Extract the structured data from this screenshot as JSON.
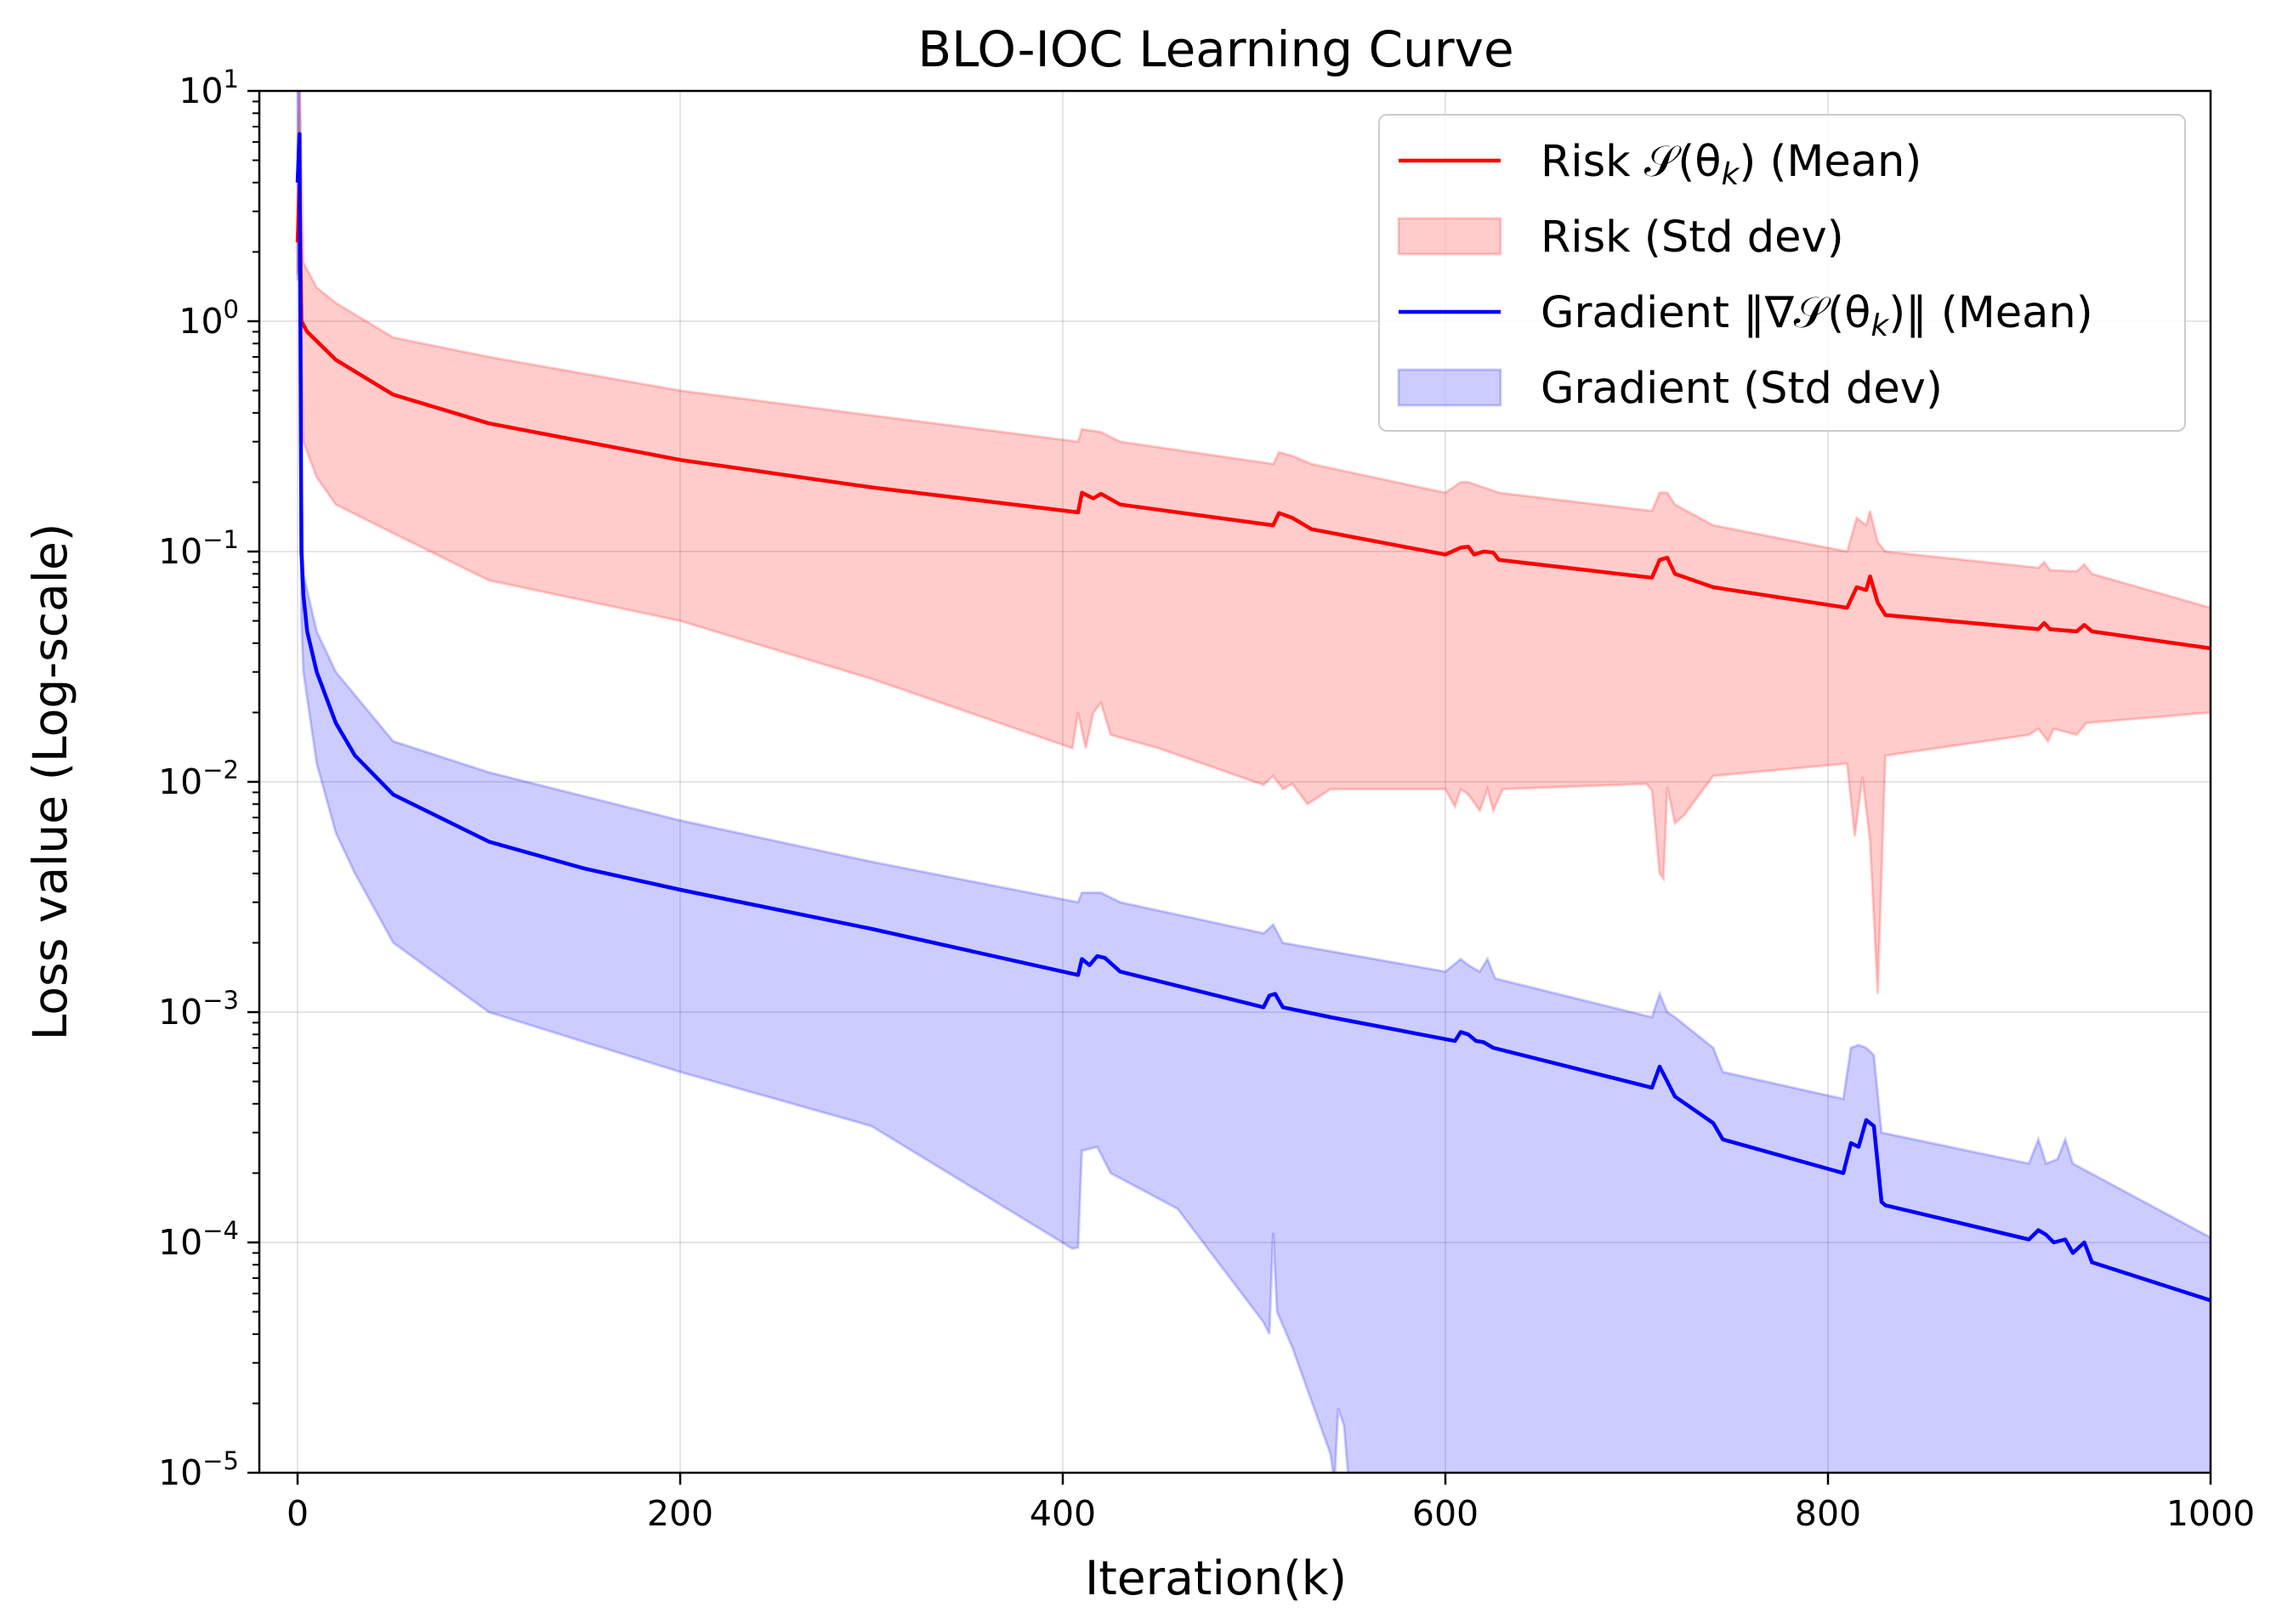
{
  "chart_data": {
    "type": "line",
    "title": "BLO-IOC Learning Curve",
    "xlabel": "Iteration(k)",
    "ylabel": "Loss value (Log-scale)",
    "xlim": [
      -20,
      1000
    ],
    "ylim": [
      1e-05,
      10
    ],
    "yscale": "log",
    "grid": true,
    "legend_position": "upper-right",
    "x_ticks": [
      0,
      200,
      400,
      600,
      800,
      1000
    ],
    "x_tick_labels": [
      "0",
      "200",
      "400",
      "600",
      "800",
      "1000"
    ],
    "y_ticks": [
      1e-05,
      0.0001,
      0.001,
      0.01,
      0.1,
      1,
      10
    ],
    "y_tick_labels": [
      {
        "base": "10",
        "exp": "−5"
      },
      {
        "base": "10",
        "exp": "−4"
      },
      {
        "base": "10",
        "exp": "−3"
      },
      {
        "base": "10",
        "exp": "−2"
      },
      {
        "base": "10",
        "exp": "−1"
      },
      {
        "base": "10",
        "exp": "0"
      },
      {
        "base": "10",
        "exp": "1"
      }
    ],
    "legend": [
      {
        "label": "Risk 𝒮(θ",
        "sub": "k",
        "tail": ") (Mean)",
        "kind": "line",
        "color": "#ff0000"
      },
      {
        "label": "Risk (Std dev)",
        "kind": "patch",
        "color": "#ff0000"
      },
      {
        "label": "Gradient ‖∇𝒮(θ",
        "sub": "k",
        "tail": ")‖ (Mean)",
        "kind": "line",
        "color": "#0000ff"
      },
      {
        "label": "Gradient (Std dev)",
        "kind": "patch",
        "color": "#0000ff"
      }
    ],
    "series": [
      {
        "name": "Risk 𝒮(θk) (Mean)",
        "color": "#ff0000",
        "role": "mean",
        "points": [
          [
            0,
            2.2
          ],
          [
            1,
            3.8
          ],
          [
            2,
            1.0
          ],
          [
            5,
            0.9
          ],
          [
            20,
            0.68
          ],
          [
            50,
            0.48
          ],
          [
            100,
            0.36
          ],
          [
            200,
            0.25
          ],
          [
            300,
            0.19
          ],
          [
            408,
            0.148
          ],
          [
            410,
            0.18
          ],
          [
            416,
            0.17
          ],
          [
            420,
            0.178
          ],
          [
            430,
            0.16
          ],
          [
            510,
            0.13
          ],
          [
            513,
            0.147
          ],
          [
            520,
            0.14
          ],
          [
            530,
            0.125
          ],
          [
            600,
            0.097
          ],
          [
            608,
            0.104
          ],
          [
            612,
            0.105
          ],
          [
            615,
            0.097
          ],
          [
            620,
            0.1
          ],
          [
            625,
            0.099
          ],
          [
            628,
            0.092
          ],
          [
            708,
            0.077
          ],
          [
            712,
            0.092
          ],
          [
            716,
            0.094
          ],
          [
            720,
            0.08
          ],
          [
            740,
            0.07
          ],
          [
            810,
            0.057
          ],
          [
            815,
            0.07
          ],
          [
            820,
            0.068
          ],
          [
            822,
            0.078
          ],
          [
            826,
            0.06
          ],
          [
            830,
            0.053
          ],
          [
            910,
            0.046
          ],
          [
            913,
            0.049
          ],
          [
            916,
            0.046
          ],
          [
            930,
            0.045
          ],
          [
            934,
            0.048
          ],
          [
            938,
            0.045
          ],
          [
            1000,
            0.038
          ]
        ]
      },
      {
        "name": "Risk (Std dev)",
        "color": "#ff0000",
        "role": "band",
        "upper": [
          [
            0,
            3.0
          ],
          [
            1,
            12.0
          ],
          [
            3,
            1.8
          ],
          [
            10,
            1.4
          ],
          [
            20,
            1.2
          ],
          [
            50,
            0.85
          ],
          [
            100,
            0.7
          ],
          [
            200,
            0.5
          ],
          [
            300,
            0.39
          ],
          [
            408,
            0.3
          ],
          [
            410,
            0.34
          ],
          [
            420,
            0.33
          ],
          [
            430,
            0.3
          ],
          [
            510,
            0.24
          ],
          [
            513,
            0.27
          ],
          [
            520,
            0.26
          ],
          [
            530,
            0.24
          ],
          [
            600,
            0.18
          ],
          [
            608,
            0.2
          ],
          [
            612,
            0.2
          ],
          [
            620,
            0.19
          ],
          [
            628,
            0.18
          ],
          [
            708,
            0.15
          ],
          [
            712,
            0.18
          ],
          [
            716,
            0.18
          ],
          [
            720,
            0.16
          ],
          [
            740,
            0.13
          ],
          [
            810,
            0.1
          ],
          [
            815,
            0.14
          ],
          [
            820,
            0.13
          ],
          [
            822,
            0.15
          ],
          [
            826,
            0.11
          ],
          [
            830,
            0.1
          ],
          [
            910,
            0.085
          ],
          [
            913,
            0.09
          ],
          [
            916,
            0.083
          ],
          [
            930,
            0.082
          ],
          [
            934,
            0.088
          ],
          [
            938,
            0.08
          ],
          [
            1000,
            0.057
          ]
        ],
        "lower": [
          [
            0,
            1.6
          ],
          [
            1,
            2.4
          ],
          [
            3,
            0.3
          ],
          [
            10,
            0.21
          ],
          [
            20,
            0.16
          ],
          [
            50,
            0.12
          ],
          [
            100,
            0.075
          ],
          [
            200,
            0.05
          ],
          [
            300,
            0.028
          ],
          [
            405,
            0.014
          ],
          [
            408,
            0.02
          ],
          [
            412,
            0.014
          ],
          [
            416,
            0.02
          ],
          [
            420,
            0.022
          ],
          [
            425,
            0.016
          ],
          [
            450,
            0.014
          ],
          [
            505,
            0.0097
          ],
          [
            510,
            0.0106
          ],
          [
            515,
            0.0093
          ],
          [
            520,
            0.0098
          ],
          [
            528,
            0.008
          ],
          [
            540,
            0.0093
          ],
          [
            600,
            0.0093
          ],
          [
            605,
            0.0078
          ],
          [
            608,
            0.0093
          ],
          [
            612,
            0.0088
          ],
          [
            618,
            0.0075
          ],
          [
            622,
            0.0093
          ],
          [
            625,
            0.0075
          ],
          [
            630,
            0.0093
          ],
          [
            705,
            0.0098
          ],
          [
            708,
            0.0092
          ],
          [
            712,
            0.004
          ],
          [
            714,
            0.0038
          ],
          [
            716,
            0.0095
          ],
          [
            720,
            0.0066
          ],
          [
            725,
            0.0072
          ],
          [
            740,
            0.0106
          ],
          [
            810,
            0.012
          ],
          [
            814,
            0.0058
          ],
          [
            818,
            0.0105
          ],
          [
            822,
            0.0055
          ],
          [
            826,
            0.0012
          ],
          [
            830,
            0.013
          ],
          [
            905,
            0.016
          ],
          [
            910,
            0.017
          ],
          [
            915,
            0.015
          ],
          [
            918,
            0.017
          ],
          [
            930,
            0.016
          ],
          [
            935,
            0.018
          ],
          [
            1000,
            0.02
          ]
        ]
      },
      {
        "name": "Gradient ‖∇𝒮(θk)‖ (Mean)",
        "color": "#0000ff",
        "role": "mean",
        "points": [
          [
            0,
            4.0
          ],
          [
            1,
            6.5
          ],
          [
            2,
            0.1
          ],
          [
            3,
            0.065
          ],
          [
            5,
            0.045
          ],
          [
            10,
            0.03
          ],
          [
            20,
            0.018
          ],
          [
            30,
            0.013
          ],
          [
            50,
            0.0088
          ],
          [
            100,
            0.0055
          ],
          [
            150,
            0.0042
          ],
          [
            200,
            0.0034
          ],
          [
            300,
            0.0023
          ],
          [
            408,
            0.00145
          ],
          [
            410,
            0.0017
          ],
          [
            414,
            0.0016
          ],
          [
            418,
            0.00175
          ],
          [
            422,
            0.00172
          ],
          [
            430,
            0.0015
          ],
          [
            505,
            0.00105
          ],
          [
            508,
            0.00118
          ],
          [
            511,
            0.0012
          ],
          [
            515,
            0.00105
          ],
          [
            540,
            0.00095
          ],
          [
            605,
            0.00075
          ],
          [
            608,
            0.00082
          ],
          [
            612,
            0.0008
          ],
          [
            616,
            0.00075
          ],
          [
            620,
            0.00074
          ],
          [
            625,
            0.0007
          ],
          [
            708,
            0.00047
          ],
          [
            712,
            0.00058
          ],
          [
            716,
            0.0005
          ],
          [
            720,
            0.00043
          ],
          [
            740,
            0.00033
          ],
          [
            745,
            0.00028
          ],
          [
            808,
            0.0002
          ],
          [
            812,
            0.00027
          ],
          [
            816,
            0.00026
          ],
          [
            820,
            0.00034
          ],
          [
            824,
            0.00032
          ],
          [
            828,
            0.00015
          ],
          [
            830,
            0.000145
          ],
          [
            905,
            0.000103
          ],
          [
            910,
            0.000113
          ],
          [
            914,
            0.000108
          ],
          [
            918,
            0.0001
          ],
          [
            924,
            0.000103
          ],
          [
            928,
            9e-05
          ],
          [
            934,
            0.0001
          ],
          [
            938,
            8.2e-05
          ],
          [
            1000,
            5.6e-05
          ]
        ]
      },
      {
        "name": "Gradient (Std dev)",
        "color": "#0000ff",
        "role": "band",
        "upper": [
          [
            0,
            11.0
          ],
          [
            1,
            12.0
          ],
          [
            2,
            0.2
          ],
          [
            3,
            0.08
          ],
          [
            10,
            0.045
          ],
          [
            20,
            0.03
          ],
          [
            50,
            0.015
          ],
          [
            100,
            0.011
          ],
          [
            200,
            0.0068
          ],
          [
            300,
            0.0045
          ],
          [
            408,
            0.003
          ],
          [
            410,
            0.0033
          ],
          [
            420,
            0.0033
          ],
          [
            430,
            0.003
          ],
          [
            505,
            0.0022
          ],
          [
            510,
            0.0024
          ],
          [
            515,
            0.002
          ],
          [
            600,
            0.0015
          ],
          [
            608,
            0.0017
          ],
          [
            612,
            0.0016
          ],
          [
            618,
            0.0015
          ],
          [
            622,
            0.0017
          ],
          [
            626,
            0.0014
          ],
          [
            708,
            0.00095
          ],
          [
            712,
            0.0012
          ],
          [
            716,
            0.001
          ],
          [
            720,
            0.00095
          ],
          [
            740,
            0.0007
          ],
          [
            745,
            0.00055
          ],
          [
            808,
            0.00042
          ],
          [
            812,
            0.0007
          ],
          [
            816,
            0.00072
          ],
          [
            820,
            0.0007
          ],
          [
            824,
            0.00065
          ],
          [
            828,
            0.0003
          ],
          [
            905,
            0.00022
          ],
          [
            910,
            0.00028
          ],
          [
            914,
            0.00022
          ],
          [
            920,
            0.00023
          ],
          [
            924,
            0.00028
          ],
          [
            928,
            0.00022
          ],
          [
            1000,
            0.000105
          ]
        ],
        "lower": [
          [
            0,
            1.5
          ],
          [
            1,
            2.0
          ],
          [
            2,
            0.05
          ],
          [
            3,
            0.03
          ],
          [
            10,
            0.012
          ],
          [
            20,
            0.006
          ],
          [
            30,
            0.004
          ],
          [
            50,
            0.002
          ],
          [
            100,
            0.001
          ],
          [
            200,
            0.00055
          ],
          [
            300,
            0.00032
          ],
          [
            405,
            9.4e-05
          ],
          [
            408,
            9.5e-05
          ],
          [
            410,
            0.00025
          ],
          [
            418,
            0.00026
          ],
          [
            425,
            0.0002
          ],
          [
            460,
            0.00014
          ],
          [
            505,
            4.5e-05
          ],
          [
            508,
            4e-05
          ],
          [
            510,
            0.00011
          ],
          [
            512,
            5e-05
          ],
          [
            520,
            3.5e-05
          ],
          [
            540,
            1.2e-05
          ],
          [
            542,
            9e-06
          ],
          [
            544,
            1.9e-05
          ],
          [
            547,
            1.6e-05
          ],
          [
            550,
            8e-06
          ]
        ]
      }
    ]
  }
}
